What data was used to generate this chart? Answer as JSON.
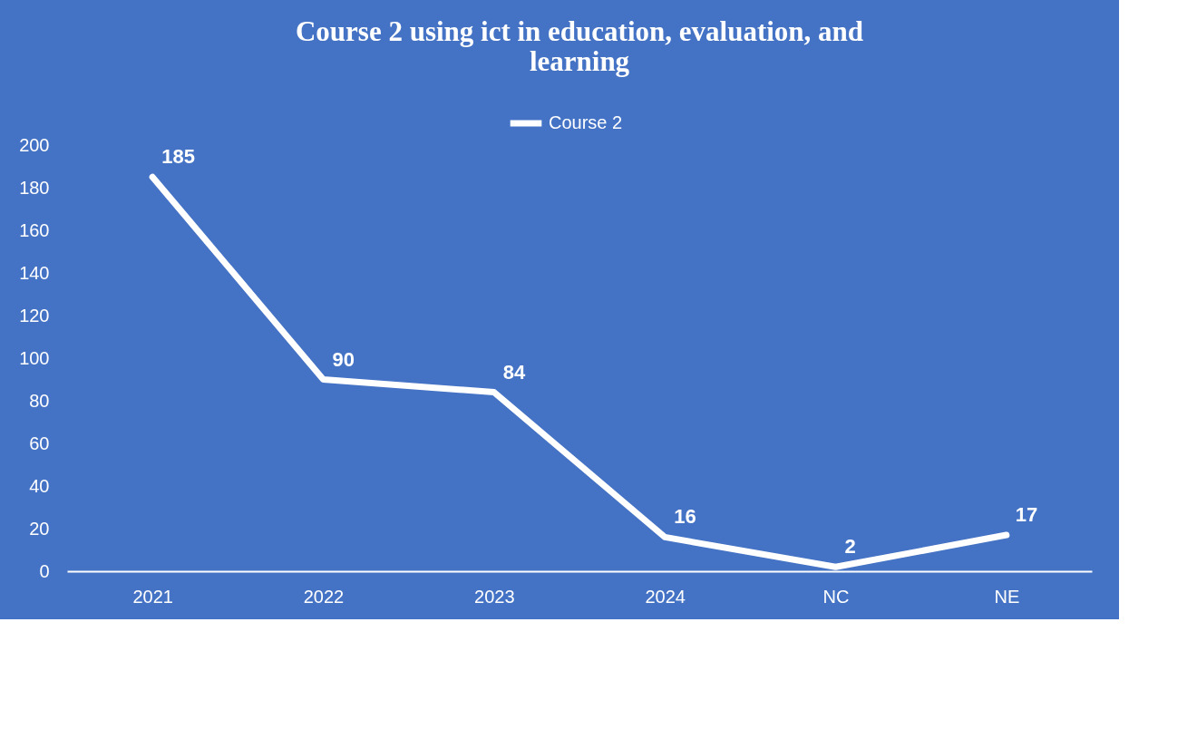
{
  "chart_data": {
    "type": "line",
    "title": "Course 2 using ict in education, evaluation, and learning",
    "categories": [
      "2021",
      "2022",
      "2023",
      "2024",
      "NC",
      "NE"
    ],
    "series": [
      {
        "name": "Course 2",
        "color": "#ffffff",
        "values": [
          185,
          90,
          84,
          16,
          2,
          17
        ]
      }
    ],
    "ylim": [
      0,
      200
    ],
    "yticks": [
      0,
      20,
      40,
      60,
      80,
      100,
      120,
      140,
      160,
      180,
      200
    ],
    "grid": false,
    "legend": "top",
    "data_labels": true,
    "marker": "none",
    "line_style": "solid"
  }
}
